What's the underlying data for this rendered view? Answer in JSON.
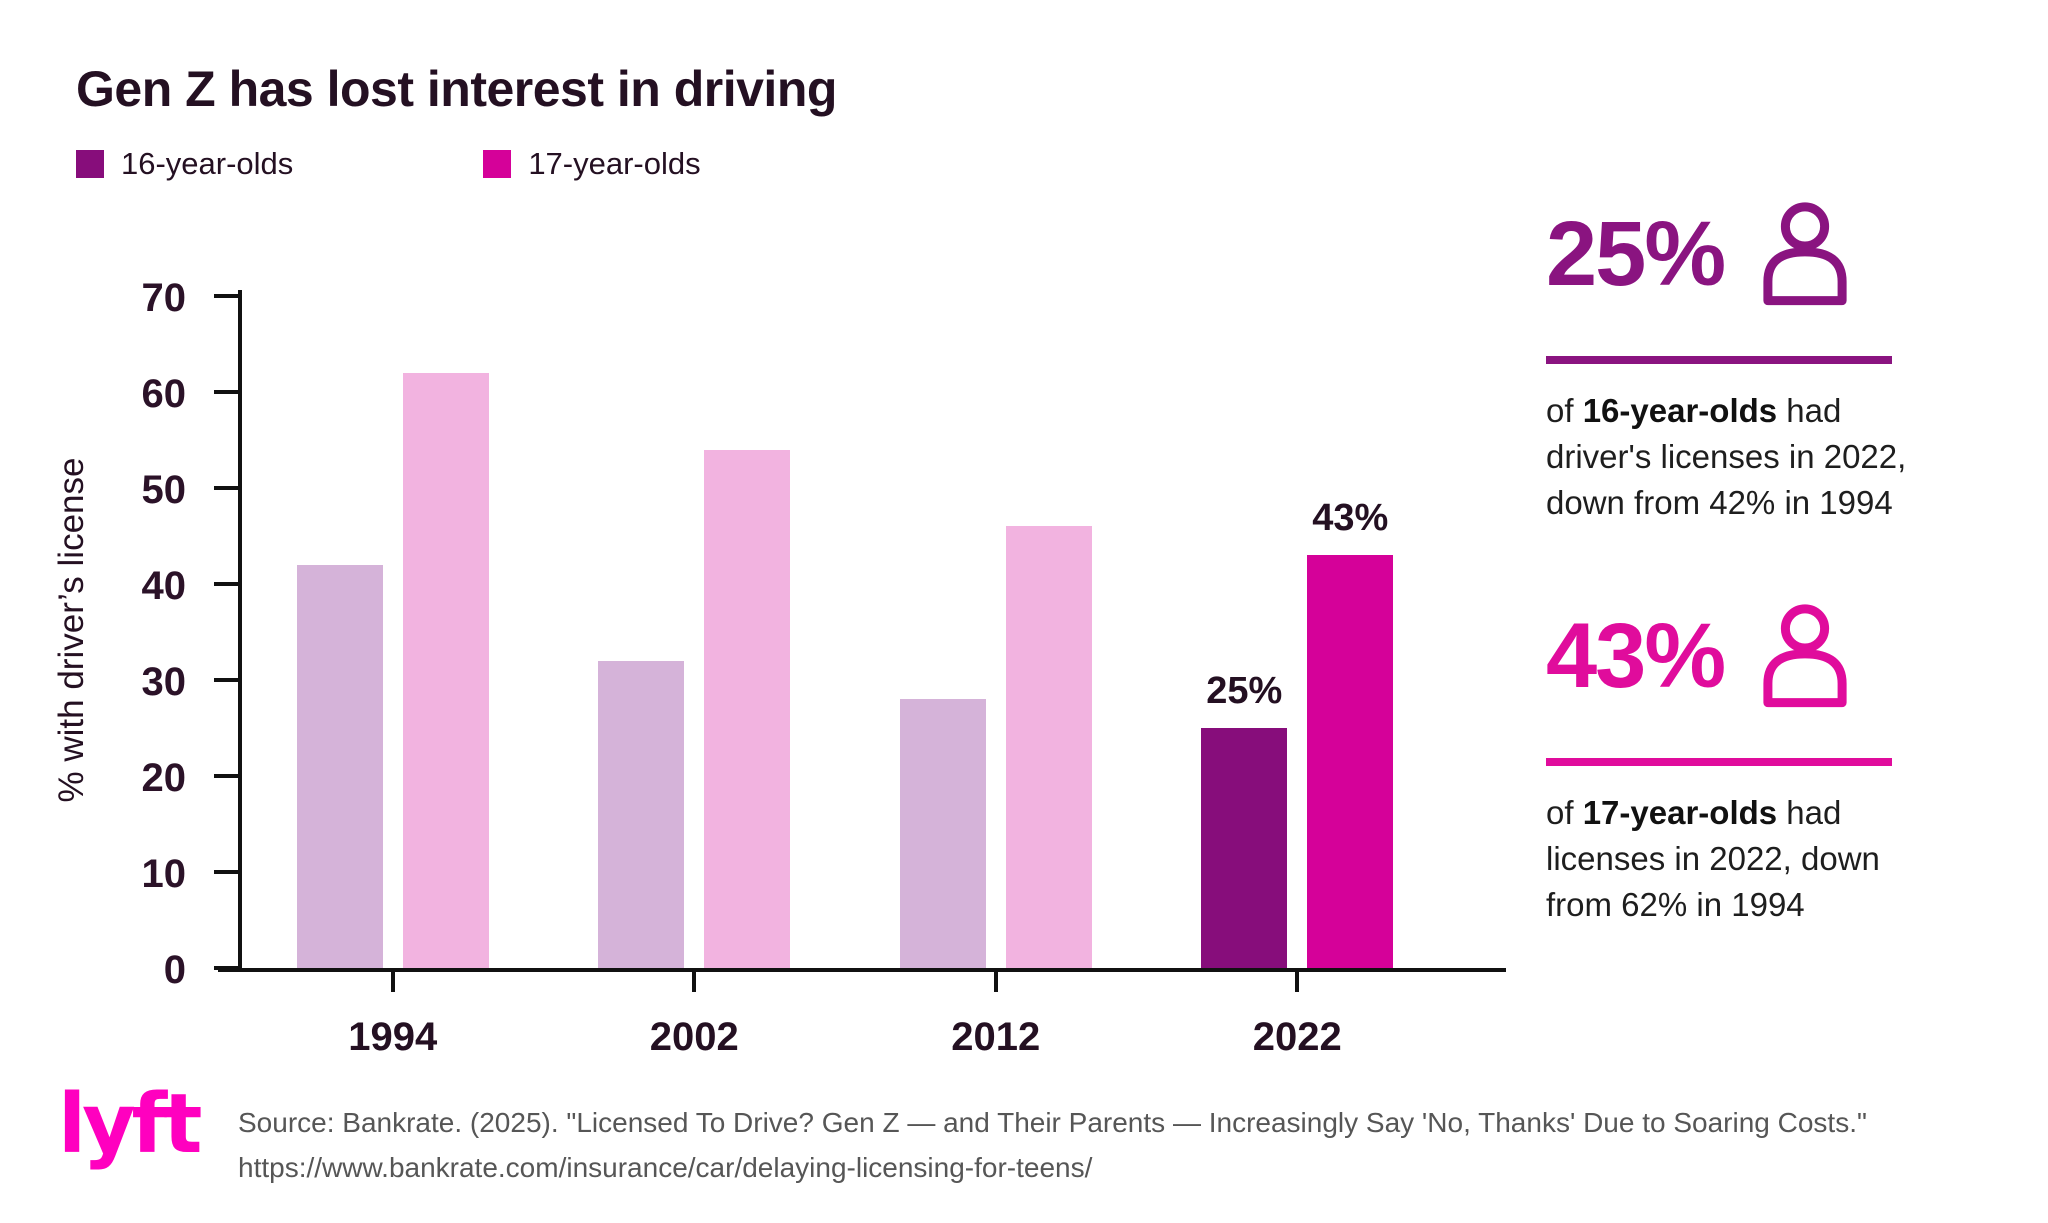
{
  "title": "Gen Z has lost interest in driving",
  "legend": [
    {
      "label": "16-year-olds",
      "color": "#870D7B"
    },
    {
      "label": "17-year-olds",
      "color": "#D50199"
    }
  ],
  "chart_data": {
    "type": "bar",
    "title": "Gen Z has lost interest in driving",
    "categories": [
      "1994",
      "2002",
      "2012",
      "2022"
    ],
    "series": [
      {
        "name": "16-year-olds",
        "values": [
          42,
          32,
          28,
          25
        ],
        "color_default": "#D5B3D9",
        "color_highlight": "#870D7B"
      },
      {
        "name": "17-year-olds",
        "values": [
          62,
          54,
          46,
          43
        ],
        "color_default": "#F2B3E0",
        "color_highlight": "#D50199"
      }
    ],
    "highlight_category": "2022",
    "bar_labels": {
      "2022": [
        "25%",
        "43%"
      ]
    },
    "xlabel": "",
    "ylabel": "% with driver’s license",
    "ylim": [
      0,
      70
    ],
    "yticks": [
      0,
      10,
      20,
      30,
      40,
      50,
      60,
      70
    ],
    "grid": false,
    "legend_position": "top-left"
  },
  "stats": [
    {
      "value": "25%",
      "icon": "person-icon",
      "color": "#8A1480",
      "text_prefix": "of ",
      "text_bold": "16-year-olds",
      "text_rest": " had driver's licenses in 2022, down from 42% in 1994"
    },
    {
      "value": "43%",
      "icon": "person-icon",
      "color": "#E00C9C",
      "text_prefix": "of ",
      "text_bold": "17-year-olds",
      "text_rest": " had licenses in 2022, down from 62% in 1994"
    }
  ],
  "footer": {
    "logo_text": "lyft",
    "source_line1": "Source: Bankrate. (2025). \"Licensed To Drive? Gen Z — and Their Parents — Increasingly Say 'No, Thanks' Due to Soaring Costs.\"",
    "source_line2": "https://www.bankrate.com/insurance/car/delaying-licensing-for-teens/"
  }
}
